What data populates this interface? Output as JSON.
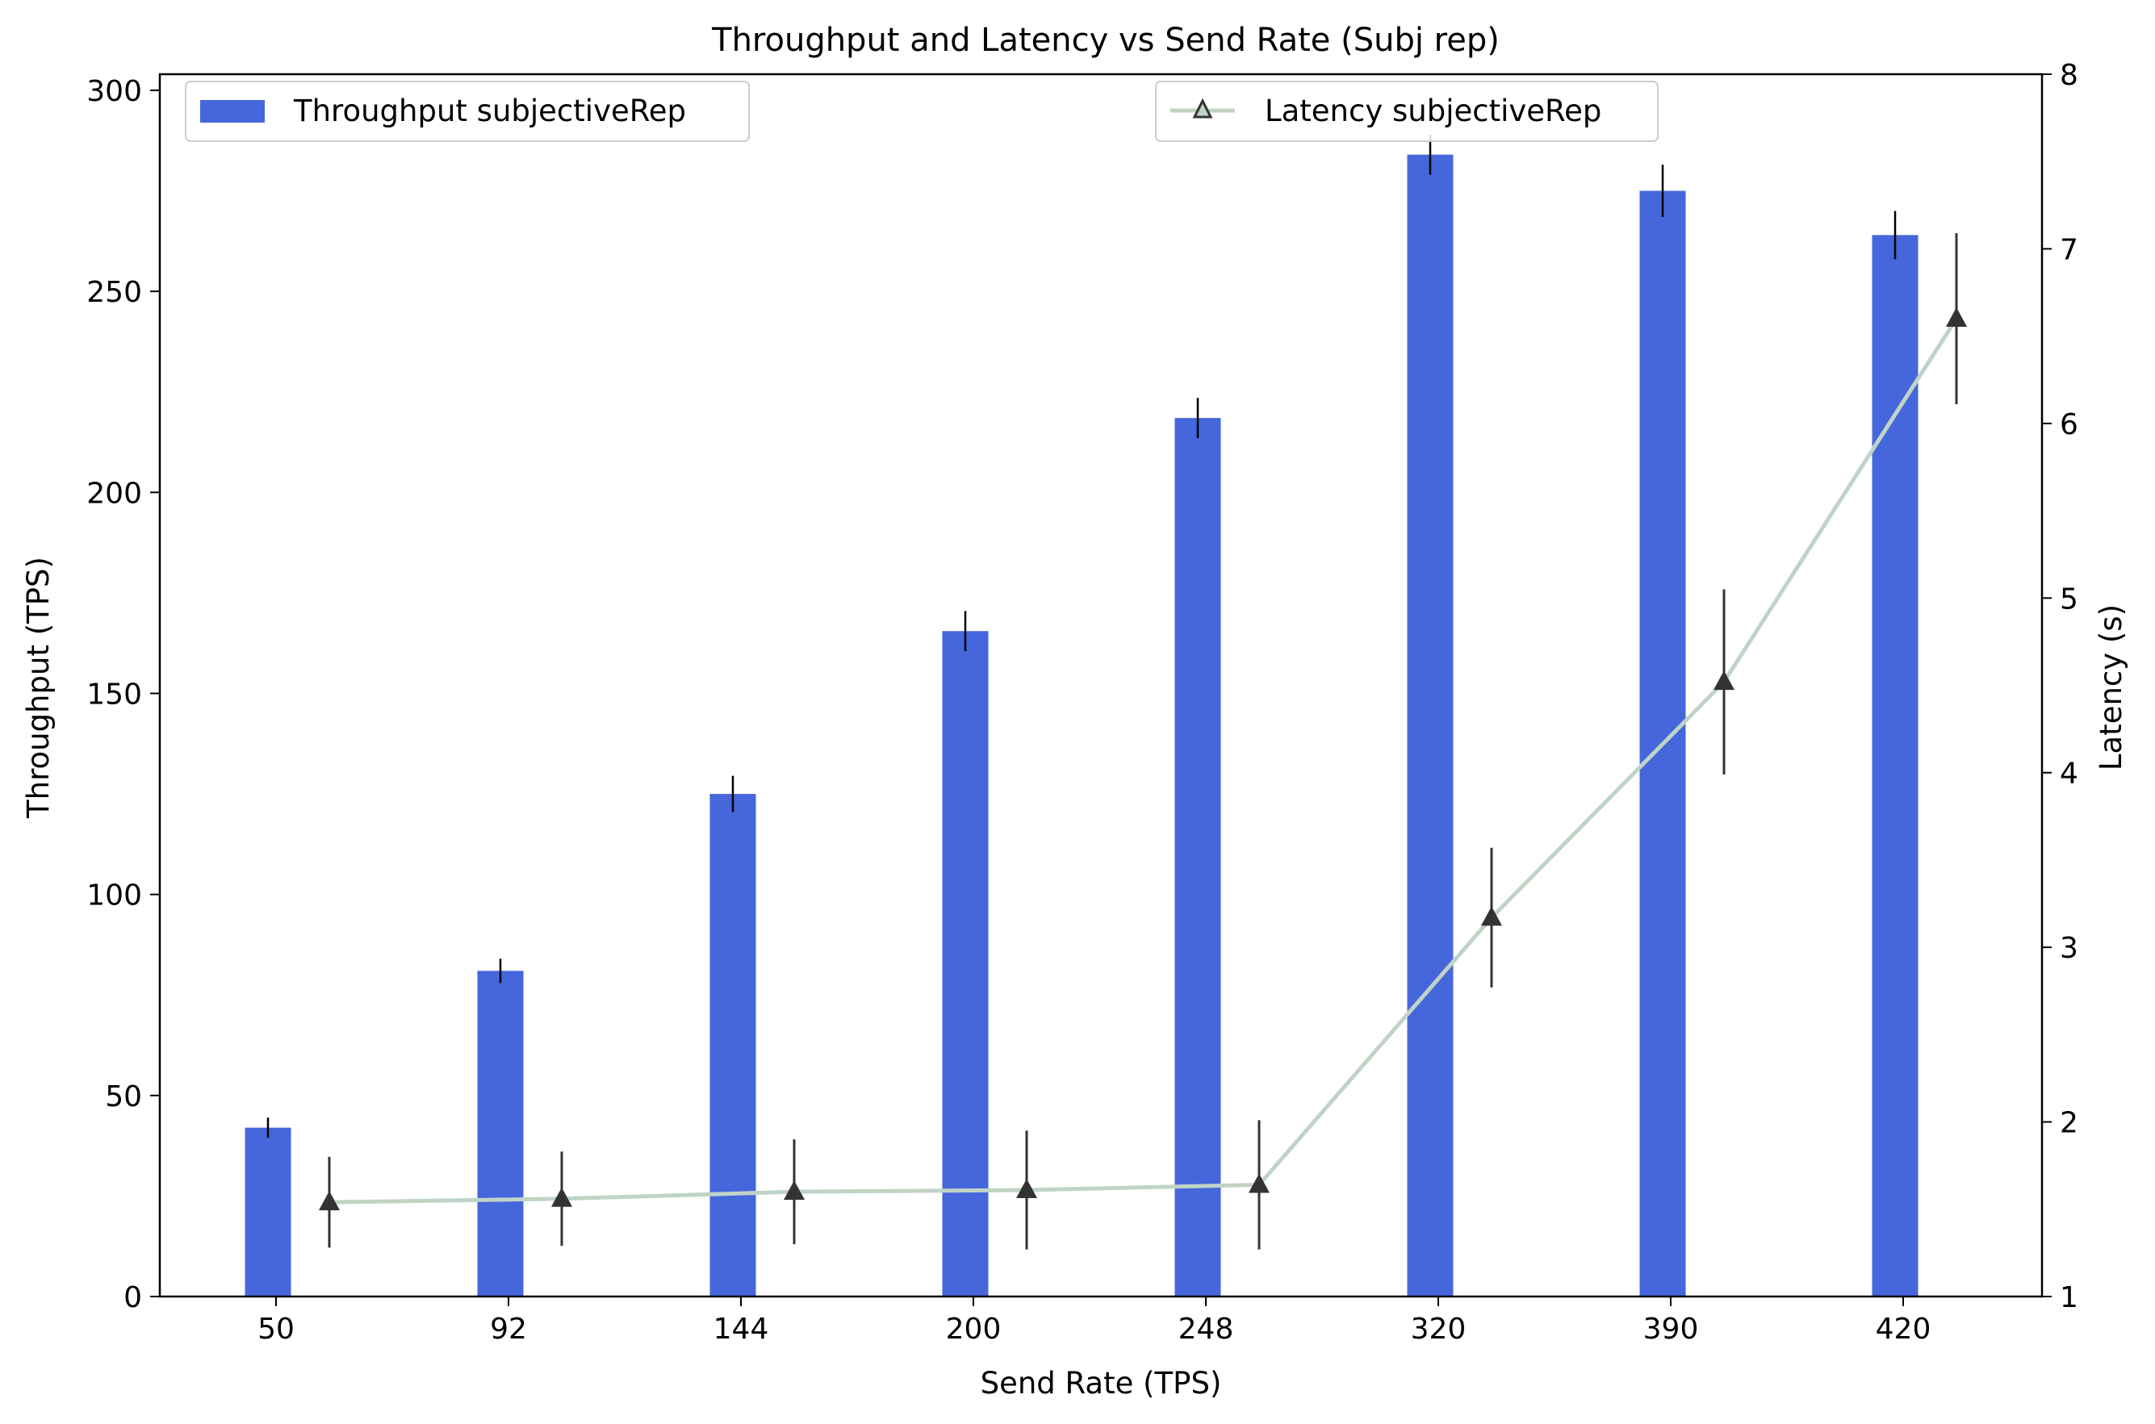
{
  "chart_data": {
    "type": "bar",
    "title": "Throughput and Latency vs Send Rate (Subj rep)",
    "xlabel": "Send Rate (TPS)",
    "ylabel": "Throughput (TPS)",
    "y2label": "Latency (s)",
    "categories": [
      "50",
      "92",
      "144",
      "200",
      "248",
      "320",
      "390",
      "420"
    ],
    "ylim": [
      0,
      304
    ],
    "y2lim": [
      1,
      8
    ],
    "yticks": [
      "0",
      "50",
      "100",
      "150",
      "200",
      "250",
      "300"
    ],
    "y2ticks": [
      "1",
      "2",
      "3",
      "4",
      "5",
      "6",
      "7",
      "8"
    ],
    "legend_placement": {
      "throughput": "top-left",
      "latency": "top-center"
    },
    "series": [
      {
        "name": "Throughput subjectiveRep",
        "kind": "bar",
        "axis": "left",
        "color": "#4666dc",
        "values": [
          42,
          81,
          125,
          165.5,
          218.5,
          284,
          275,
          264
        ],
        "errors": [
          2.5,
          3,
          4.5,
          5,
          5,
          5,
          6.5,
          6
        ]
      },
      {
        "name": "Latency subjectiveRep",
        "kind": "line",
        "axis": "right",
        "color": "#c0d4c6",
        "marker": "triangle",
        "marker_color": "#333333",
        "values": [
          1.54,
          1.56,
          1.6,
          1.61,
          1.64,
          3.17,
          4.52,
          6.6
        ],
        "errors": [
          0.26,
          0.27,
          0.3,
          0.34,
          0.37,
          0.4,
          0.53,
          0.49
        ]
      }
    ],
    "grid": false
  }
}
